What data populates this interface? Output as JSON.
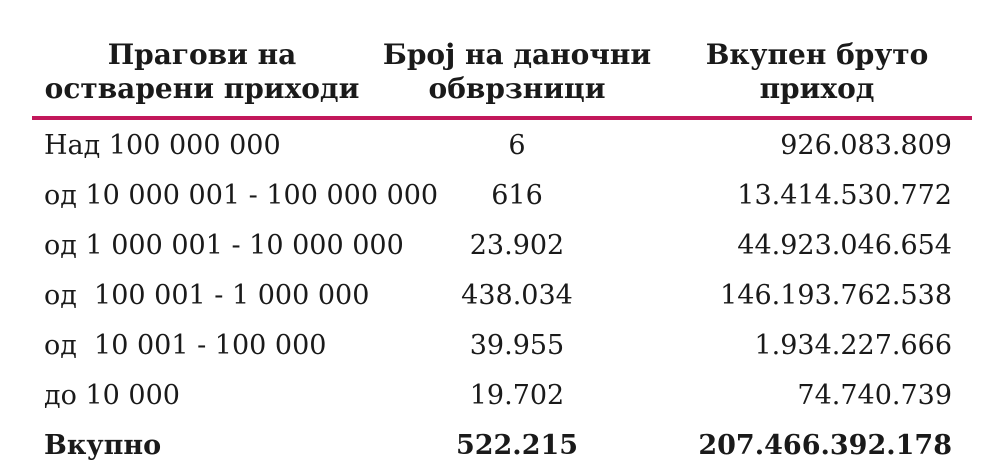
{
  "table": {
    "headers": [
      [
        "Прагови на",
        "остварени приходи"
      ],
      [
        "Број на даночни",
        "обврзници"
      ],
      [
        "Вкупен бруто",
        "приход"
      ]
    ],
    "rows": [
      [
        "Над 100 000 000",
        "6",
        "926.083.809"
      ],
      [
        "од 10 000 001 - 100 000 000",
        "616",
        "13.414.530.772"
      ],
      [
        "од 1 000 001 - 10 000 000",
        "23.902",
        "44.923.046.654"
      ],
      [
        "од  100 001 - 1 000 000",
        "438.034",
        "146.193.762.538"
      ],
      [
        "од  10 001 - 100 000",
        "39.955",
        "1.934.227.666"
      ],
      [
        "до 10 000",
        "19.702",
        "74.740.739"
      ]
    ],
    "total": [
      "Вкупно",
      "522.215",
      "207.466.392.178"
    ]
  },
  "colors": {
    "rule": "#c2185b",
    "text": "#1a1a1a"
  }
}
